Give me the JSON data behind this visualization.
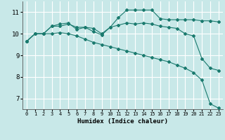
{
  "xlabel": "Humidex (Indice chaleur)",
  "ylabel": "",
  "bg_color": "#c8e8e8",
  "grid_color": "#ffffff",
  "line_color": "#1a7a6e",
  "xlim": [
    -0.5,
    23.5
  ],
  "ylim": [
    6.5,
    11.5
  ],
  "xticks": [
    0,
    1,
    2,
    3,
    4,
    5,
    6,
    7,
    8,
    9,
    10,
    11,
    12,
    13,
    14,
    15,
    16,
    17,
    18,
    19,
    20,
    21,
    22,
    23
  ],
  "yticks": [
    7,
    8,
    9,
    10,
    11
  ],
  "line1_x": [
    0,
    1,
    2,
    3,
    4,
    5,
    6,
    7,
    8,
    9,
    10,
    11,
    12,
    13,
    14,
    15,
    16,
    17,
    18,
    19,
    20,
    21,
    22,
    23
  ],
  "line1_y": [
    9.65,
    10.0,
    10.0,
    10.35,
    10.35,
    10.45,
    10.3,
    10.3,
    10.25,
    10.0,
    10.3,
    10.75,
    11.1,
    11.1,
    11.1,
    11.1,
    10.7,
    10.65,
    10.65,
    10.65,
    10.65,
    10.6,
    10.6,
    10.55
  ],
  "line2_x": [
    0,
    1,
    2,
    3,
    4,
    5,
    6,
    7,
    8,
    9,
    10,
    11,
    12,
    13,
    14,
    15,
    16,
    17,
    18,
    19,
    20,
    21,
    22,
    23
  ],
  "line2_y": [
    9.65,
    10.0,
    10.0,
    10.35,
    10.45,
    10.5,
    10.2,
    10.3,
    10.1,
    9.95,
    10.3,
    10.4,
    10.5,
    10.45,
    10.5,
    10.45,
    10.35,
    10.3,
    10.25,
    10.0,
    9.9,
    8.85,
    8.4,
    8.3
  ],
  "line3_x": [
    0,
    1,
    2,
    3,
    4,
    5,
    6,
    7,
    8,
    9,
    10,
    11,
    12,
    13,
    14,
    15,
    16,
    17,
    18,
    19,
    20,
    21,
    22,
    23
  ],
  "line3_y": [
    9.65,
    10.0,
    10.0,
    10.0,
    10.05,
    10.0,
    9.9,
    9.75,
    9.6,
    9.5,
    9.4,
    9.3,
    9.2,
    9.1,
    9.0,
    8.9,
    8.8,
    8.7,
    8.55,
    8.4,
    8.2,
    7.85,
    6.75,
    6.55
  ],
  "xtick_fontsize": 5.0,
  "ytick_fontsize": 6.5,
  "xlabel_fontsize": 6.5
}
